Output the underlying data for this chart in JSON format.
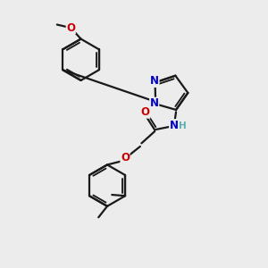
{
  "bg_color": "#ececec",
  "bond_color": "#1a1a1a",
  "bond_width": 1.6,
  "atom_colors": {
    "N": "#0000cc",
    "O": "#cc0000",
    "H": "#5aafaf",
    "C": "#1a1a1a"
  },
  "font_size_atom": 8.5,
  "font_size_label": 7.5
}
